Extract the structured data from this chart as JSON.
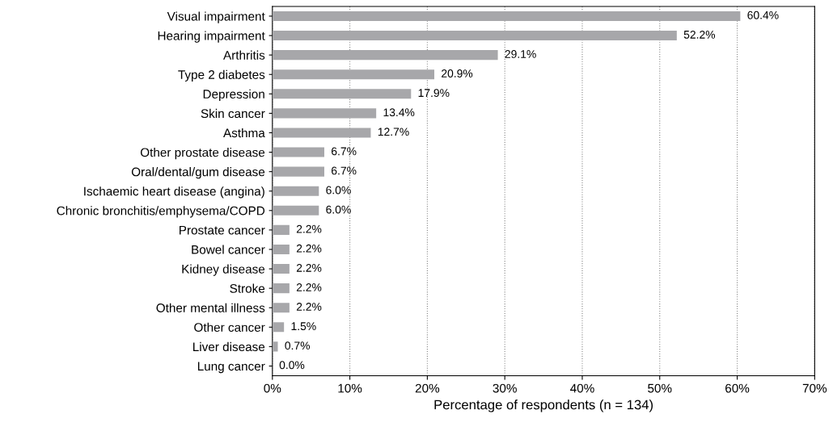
{
  "chart_data": {
    "type": "bar",
    "orientation": "horizontal",
    "categories": [
      "Visual impairment",
      "Hearing impairment",
      "Arthritis",
      "Type 2 diabetes",
      "Depression",
      "Skin cancer",
      "Asthma",
      "Other prostate disease",
      "Oral/dental/gum disease",
      "Ischaemic heart disease (angina)",
      "Chronic bronchitis/emphysema/COPD",
      "Prostate cancer",
      "Bowel cancer",
      "Kidney disease",
      "Stroke",
      "Other mental illness",
      "Other cancer",
      "Liver disease",
      "Lung cancer"
    ],
    "values": [
      60.4,
      52.2,
      29.1,
      20.9,
      17.9,
      13.4,
      12.7,
      6.7,
      6.7,
      6.0,
      6.0,
      2.2,
      2.2,
      2.2,
      2.2,
      2.2,
      1.5,
      0.7,
      0.0
    ],
    "value_labels": [
      "60.4%",
      "52.2%",
      "29.1%",
      "20.9%",
      "17.9%",
      "13.4%",
      "12.7%",
      "6.7%",
      "6.7%",
      "6.0%",
      "6.0%",
      "2.2%",
      "2.2%",
      "2.2%",
      "2.2%",
      "2.2%",
      "1.5%",
      "0.7%",
      "0.0%"
    ],
    "color": "#a7a7aa",
    "xlabel": "Percentage of respondents (n = 134)",
    "xlim": [
      0,
      70
    ],
    "xticks": [
      {
        "value": 0,
        "label": "0%"
      },
      {
        "value": 10,
        "label": "10%"
      },
      {
        "value": 20,
        "label": "20%"
      },
      {
        "value": 30,
        "label": "30%"
      },
      {
        "value": 40,
        "label": "40%"
      },
      {
        "value": 50,
        "label": "50%"
      },
      {
        "value": 60,
        "label": "60%"
      },
      {
        "value": 70,
        "label": "70%"
      }
    ],
    "grid": "x",
    "line_style": "dotted"
  }
}
